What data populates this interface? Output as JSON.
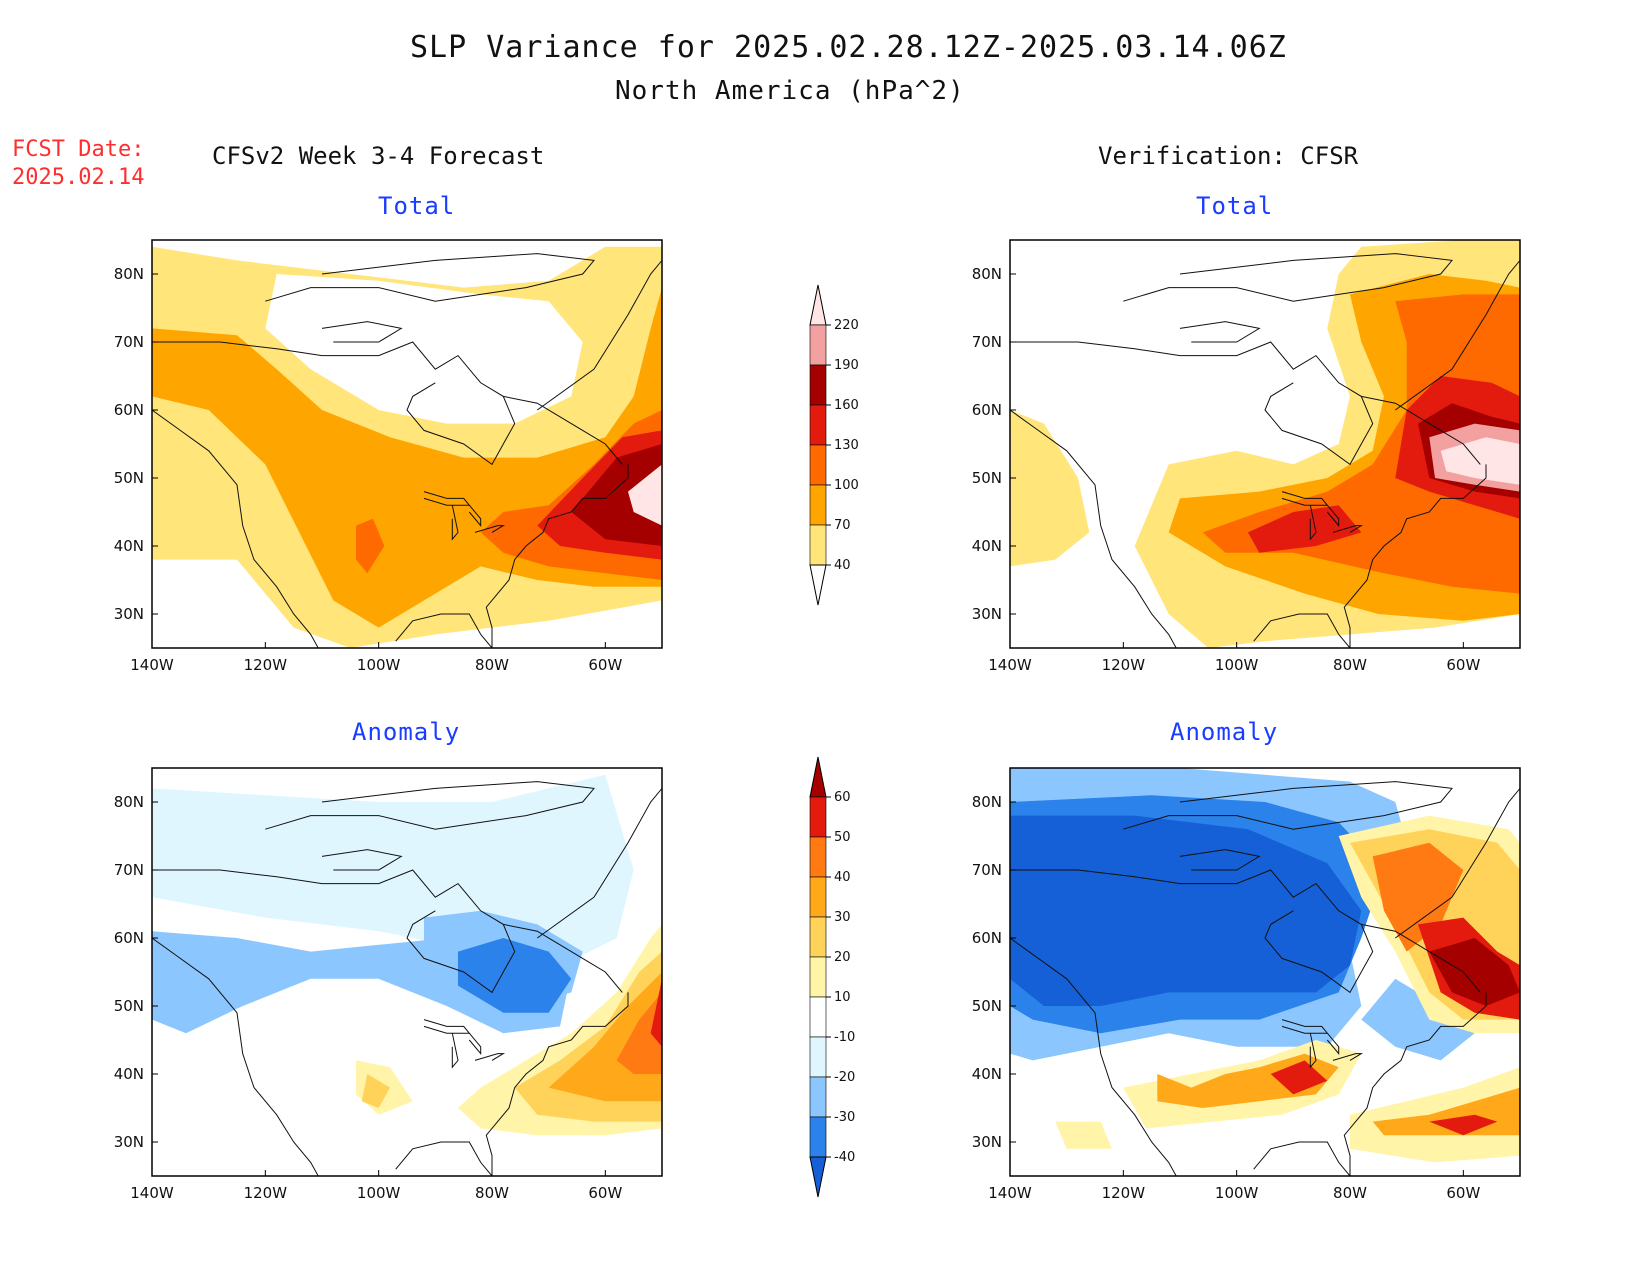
{
  "header": {
    "title": "SLP Variance for 2025.02.28.12Z-2025.03.14.06Z",
    "subtitle": "North America (hPa^2)"
  },
  "fcst": {
    "label": "FCST Date:",
    "date": "2025.02.14"
  },
  "columns": {
    "left": "CFSv2 Week 3-4 Forecast",
    "right": "Verification: CFSR"
  },
  "panels": {
    "tl": {
      "title": "Total"
    },
    "tr": {
      "title": "Total"
    },
    "bl": {
      "title": "Anomaly"
    },
    "br": {
      "title": "Anomaly"
    }
  },
  "axes": {
    "lon_labels": [
      "140W",
      "120W",
      "100W",
      "80W",
      "60W"
    ],
    "lon_values": [
      -140,
      -120,
      -100,
      -80,
      -60
    ],
    "lat_labels": [
      "30N",
      "40N",
      "50N",
      "60N",
      "70N",
      "80N"
    ],
    "lat_values": [
      30,
      40,
      50,
      60,
      70,
      80
    ],
    "lon_range": [
      -140,
      -50
    ],
    "lat_range": [
      25,
      85
    ]
  },
  "colorbars": {
    "total": {
      "labels": [
        "40",
        "70",
        "100",
        "130",
        "160",
        "190",
        "220"
      ],
      "levels": [
        40,
        70,
        100,
        130,
        160,
        190,
        220
      ],
      "colors": [
        "#ffffff",
        "#ffe57a",
        "#ffa500",
        "#ff6a00",
        "#e31a0e",
        "#a50000",
        "#f2a0a0",
        "#ffe5e5"
      ]
    },
    "anomaly": {
      "labels": [
        "-40",
        "-30",
        "-20",
        "-10",
        "10",
        "20",
        "30",
        "40",
        "50",
        "60"
      ],
      "levels": [
        -40,
        -30,
        -20,
        -10,
        10,
        20,
        30,
        40,
        50,
        60
      ],
      "colors": [
        "#1560d6",
        "#2b82ea",
        "#8cc6ff",
        "#e0f6ff",
        "#ffffff",
        "#fff4a8",
        "#ffd25a",
        "#ffa81a",
        "#ff7a12",
        "#e31a0e",
        "#a50000"
      ]
    }
  }
}
